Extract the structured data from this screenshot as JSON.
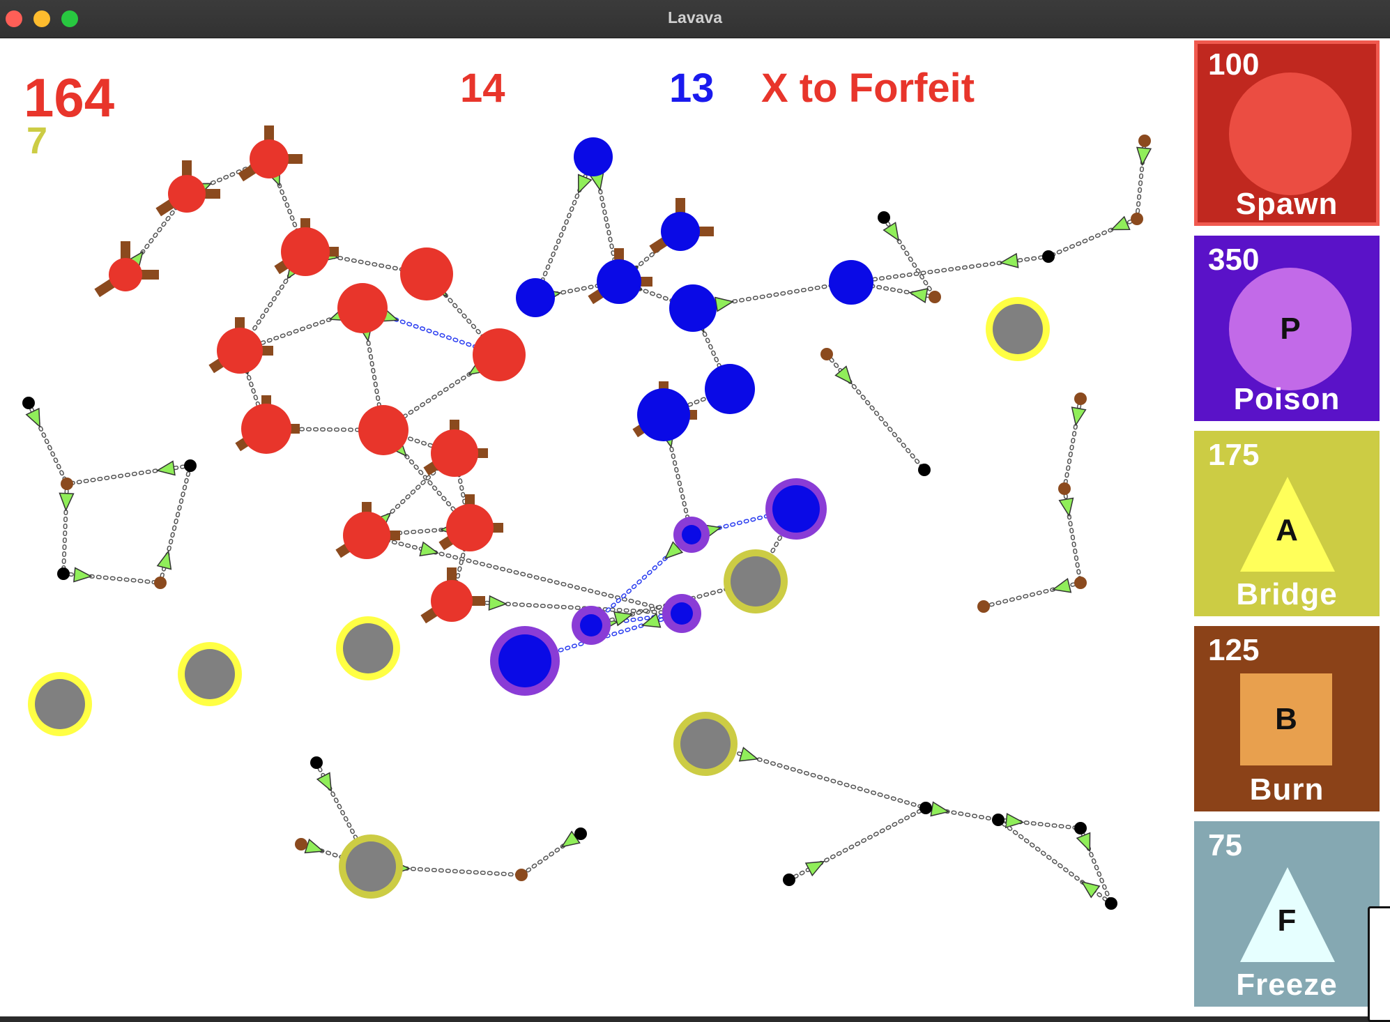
{
  "window": {
    "title": "Lavava"
  },
  "hud": {
    "money": "164",
    "sub": "7",
    "red_count": "14",
    "blue_count": "13",
    "forfeit": "X to Forfeit"
  },
  "colors": {
    "red": "#e8352b",
    "blue": "#0a0ae6",
    "gray_node": "#808080",
    "bridge_ring": "#ffff44",
    "poison": "#8a3cd6",
    "cannon": "#8b4a1e"
  },
  "abilities": [
    {
      "key": "spawn",
      "cost": "100",
      "label": "Spawn",
      "letter": "",
      "shape": "circle",
      "bg": "#c0281f",
      "fg": "#eb4d42",
      "selected": true
    },
    {
      "key": "poison",
      "cost": "350",
      "label": "Poison",
      "letter": "P",
      "shape": "circle",
      "bg": "#5a12c8",
      "fg": "#c26ae8",
      "selected": false
    },
    {
      "key": "bridge",
      "cost": "175",
      "label": "Bridge",
      "letter": "A",
      "shape": "triangle",
      "bg": "#cccc44",
      "fg": "#ffff5a",
      "selected": false
    },
    {
      "key": "burn",
      "cost": "125",
      "label": "Burn",
      "letter": "B",
      "shape": "square",
      "bg": "#8b4218",
      "fg": "#e8a04e",
      "selected": false
    },
    {
      "key": "freeze",
      "cost": "75",
      "label": "Freeze",
      "letter": "F",
      "shape": "triangle",
      "bg": "#85a8b2",
      "fg": "#e6ffff",
      "selected": false
    }
  ]
}
